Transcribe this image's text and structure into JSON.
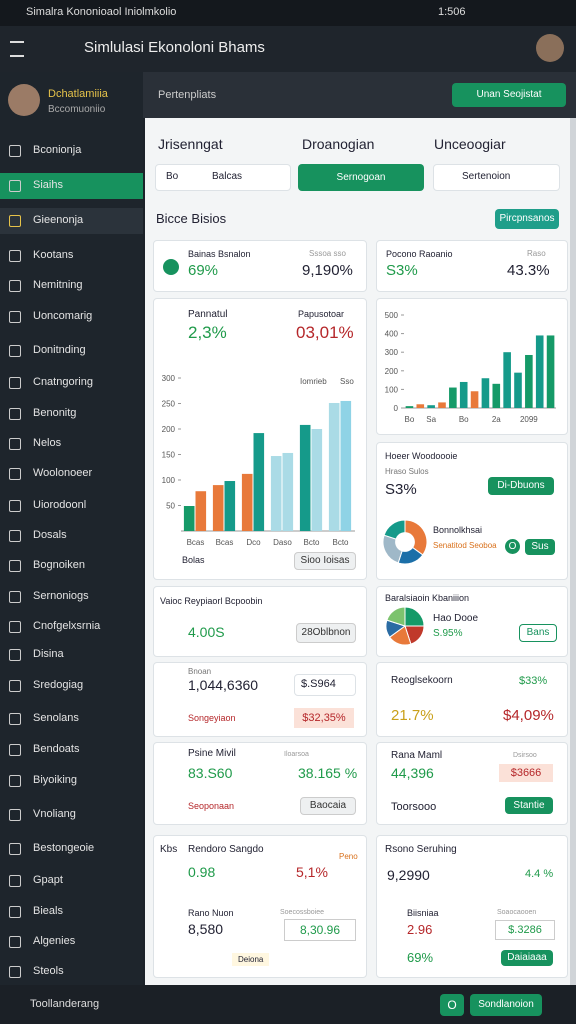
{
  "status_bar": {
    "title": "Simalra Kononioaol Iniolmkolio",
    "time": "1:506"
  },
  "header": {
    "title": "Simlulasi Ekonoloni Bhams"
  },
  "user": {
    "name": "Dchatlamiiia",
    "subtitle": "Bccomuoniio"
  },
  "menu": [
    "Bconionja",
    "Siaihs",
    "Gieenonja",
    "Kootans",
    "Nemitning",
    "Uoncomarig",
    "Donitnding",
    "Cnatngoring",
    "Benonitg",
    "Nelos",
    "Woolonoeer",
    "Uiorodoonl",
    "Dosals",
    "Bognoiken",
    "Sernoniogs",
    "Cnofgelxsrnia",
    "Disina",
    "Sredogiag",
    "Senolans",
    "Bendoats",
    "Biyoiking",
    "Vnoliang",
    "Bestongeoie",
    "Gpapt",
    "Bieals",
    "Algenies",
    "Steols"
  ],
  "bottom": {
    "label": "Toollanderang",
    "button_icon": "O",
    "button": "Sondlanoion"
  },
  "top": {
    "label": "Pertenpliats",
    "button": "Unan Seojistat"
  },
  "filters": {
    "labels": [
      "Jrisenngat",
      "Droanogian",
      "Unceoogiar"
    ],
    "select1_prefix": "Bo",
    "select1": "Balcas",
    "select2": "Sernogoan",
    "select3": "Sertenoion"
  },
  "section": {
    "title": "Bicce Bisios",
    "button": "Pircpnsanos"
  },
  "cards": {
    "a": {
      "title": "Bainas Bsnalon",
      "note": "Sssoa sso",
      "value": "69%",
      "value2": "9,190%"
    },
    "b": {
      "title": "Pocono Raoanio",
      "note": "Raso",
      "value": "S3%",
      "value2": "43.3%"
    },
    "c": {
      "label1": "Pannatul",
      "label2": "Papusotoar",
      "value1": "2,3%",
      "value2": "03,01%",
      "footer": "Bolas",
      "button": "Sioo Ioisas"
    },
    "e": {
      "title": "Hoeer Woodoooie",
      "subtitle": "Hraso Sulos",
      "value": "S3%",
      "button": "Di-Dbuons",
      "label": "Bonnolkhsai",
      "sublabel": "Senatitod Seoboa",
      "round": "O",
      "button2": "Sus"
    },
    "f": {
      "title": "Vaioc Reypiaorl Bcpoobin",
      "value": "4.00S",
      "button": "28Oblbnon"
    },
    "g": {
      "title": "Baralsiaoin Kbaniiion",
      "label": "Hao Dooe",
      "value": "S.95%",
      "button": "Bans"
    },
    "h": {
      "label": "Bnoan",
      "value": "1,044,6360",
      "field": "$.S964",
      "sublabel": "Songeyiaon",
      "value2": "$32,35%"
    },
    "i": {
      "title": "Reoglsekoorn",
      "value1": "$33%",
      "value2": "21.7%",
      "value3": "$4,09%"
    },
    "j": {
      "label": "Psine Mivil",
      "note": "Iloarsoa",
      "value1": "83.S60",
      "value2": "38.165 %",
      "sublabel": "Seoponaan",
      "button": "Baocaia"
    },
    "k": {
      "label": "Rana Maml",
      "note": "Dsirsoo",
      "value1": "44,396",
      "field": "$3666",
      "sublabel": "Toorsooo",
      "button": "Stantie"
    },
    "l": {
      "tag": "Kbs",
      "title": "Rendoro Sangdo",
      "note": "Peno",
      "value1": "0.98",
      "value2": "5,1%",
      "label": "Rano Nuon",
      "note2": "Soecossboiee",
      "value3": "8,580",
      "field": "8,30.96",
      "button": "Deiona"
    },
    "m": {
      "title": "Rsono Seruhing",
      "value1": "9,2990",
      "value2": "4.4 %",
      "label": "Biisniaa",
      "note": "Soaocaooen",
      "value3": "2.96",
      "field": "$.3286",
      "value4": "69%",
      "button": "Daiaiaaa"
    }
  },
  "chart_data": [
    {
      "type": "bar",
      "categories": [
        "Bcas",
        "Bcas",
        "Dco",
        "Daso",
        "Bcto",
        "Bcto"
      ],
      "annotations": [
        "Iomrieb",
        "Sso"
      ],
      "series": [
        {
          "colors": [
            "#159a68",
            "#e8793a",
            "#e8793a",
            "#aadbe6",
            "#159a8a",
            "#aadbe6"
          ],
          "values": [
            49,
            90,
            112,
            147,
            208,
            251
          ]
        },
        {
          "colors": [
            "#e8793a",
            "#159a8a",
            "#159a8a",
            "#aadbe6",
            "#aadbe6",
            "#8fd3e6"
          ],
          "values": [
            78,
            98,
            192,
            153,
            200,
            255
          ]
        }
      ],
      "ylim": [
        0,
        300
      ],
      "yticks": [
        50,
        100,
        150,
        200,
        250,
        300
      ]
    },
    {
      "type": "bar",
      "categories": [
        "Bo",
        null,
        "Sa",
        null,
        null,
        "Bo",
        null,
        null,
        "2a",
        null,
        null,
        "2099",
        null,
        null
      ],
      "colors": [
        "#159a68",
        "#e8793a",
        "#159a8a",
        "#e8793a",
        "#159a68",
        "#159a8a",
        "#e8793a",
        "#159a8a",
        "#159a68",
        "#159a8a",
        "#159a8a",
        "#159a68",
        "#159a8a",
        "#159a68"
      ],
      "values": [
        10,
        20,
        15,
        30,
        110,
        140,
        90,
        160,
        130,
        300,
        190,
        285,
        390,
        390
      ],
      "ylim": [
        0,
        500
      ],
      "yticks": [
        0,
        100,
        200,
        300,
        400,
        500
      ]
    },
    {
      "type": "donut",
      "colors": [
        "#e8793a",
        "#1c6fa8",
        "#9fb8c8",
        "#159a8a"
      ],
      "values": [
        35,
        20,
        25,
        20
      ]
    },
    {
      "type": "pie",
      "colors": [
        "#159a68",
        "#c0392b",
        "#e8793a",
        "#2b6ca3",
        "#7cc36e"
      ],
      "values": [
        25,
        20,
        20,
        15,
        20
      ]
    }
  ]
}
